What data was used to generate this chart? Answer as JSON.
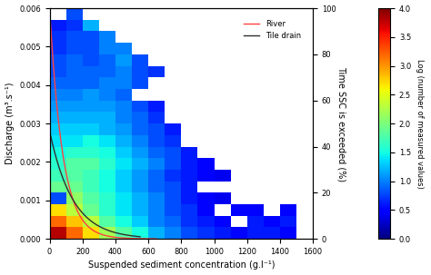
{
  "xlabel": "Suspended sediment concentration (g.l⁻¹)",
  "ylabel": "Discharge (m³.s⁻¹)",
  "ylabel2": "Time SSC is exceeded (%)",
  "colorbar_label": "Log (number of measured values)",
  "xlim": [
    0,
    1600
  ],
  "ylim": [
    0,
    0.006
  ],
  "ylim2": [
    0,
    100
  ],
  "xticks": [
    0,
    200,
    400,
    600,
    800,
    1000,
    1200,
    1400,
    1600
  ],
  "yticks": [
    0,
    0.001,
    0.002,
    0.003,
    0.004,
    0.005,
    0.006
  ],
  "yticks2": [
    0,
    20,
    40,
    60,
    80,
    100
  ],
  "colormap": "jet",
  "vmin": 0,
  "vmax": 4,
  "colorbar_ticks": [
    0,
    0.5,
    1,
    1.5,
    2,
    2.5,
    3,
    3.5,
    4
  ],
  "river_color": "#ff4040",
  "tile_drain_color": "#303030",
  "legend_entries": [
    "River",
    "Tile drain"
  ],
  "river_A": 0.006,
  "river_decay": 80,
  "tile_A": 0.0028,
  "tile_decay": 140,
  "river_xmax": 650,
  "tile_xmax": 550
}
